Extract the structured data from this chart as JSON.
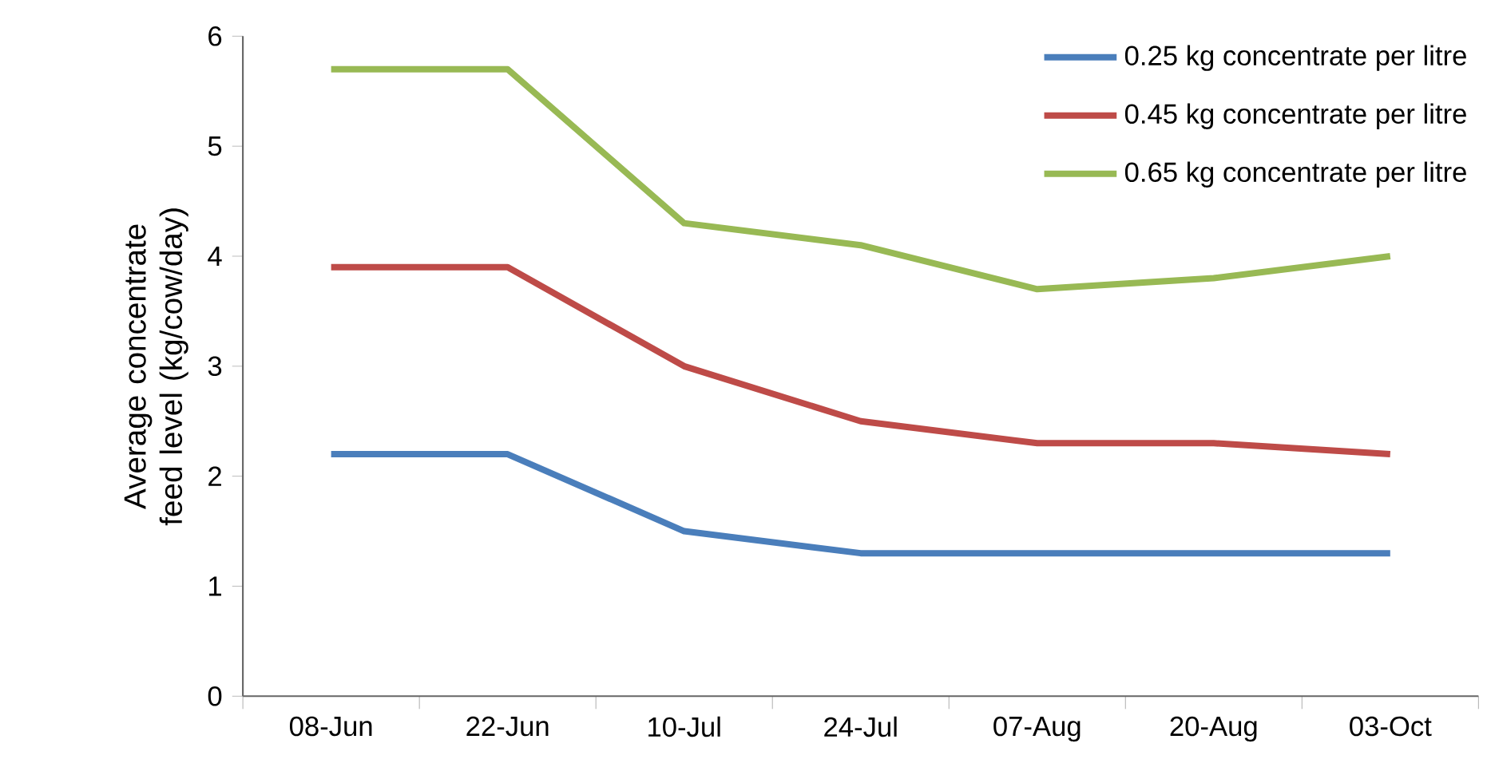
{
  "chart_data": {
    "type": "line",
    "ylabel": "Average concentrate feed level (kg/cow/day)",
    "categories": [
      "08-Jun",
      "22-Jun",
      "10-Jul",
      "24-Jul",
      "07-Aug",
      "20-Aug",
      "03-Oct"
    ],
    "series": [
      {
        "name": "0.25 kg concentrate per litre",
        "color": "#4a7ebb",
        "values": [
          2.2,
          2.2,
          1.5,
          1.3,
          1.3,
          1.3,
          1.3
        ]
      },
      {
        "name": "0.45 kg concentrate per litre",
        "color": "#be4b48",
        "values": [
          3.9,
          3.9,
          3.0,
          2.5,
          2.3,
          2.3,
          2.2
        ]
      },
      {
        "name": "0.65 kg concentrate per litre",
        "color": "#98b954",
        "values": [
          5.7,
          5.7,
          4.3,
          4.1,
          3.7,
          3.8,
          4.0
        ]
      }
    ],
    "ylim": [
      0,
      6
    ],
    "yticks": [
      0,
      1,
      2,
      3,
      4,
      5,
      6
    ],
    "grid": false,
    "legend": "top right",
    "marker": "none",
    "line_style": "solid"
  }
}
